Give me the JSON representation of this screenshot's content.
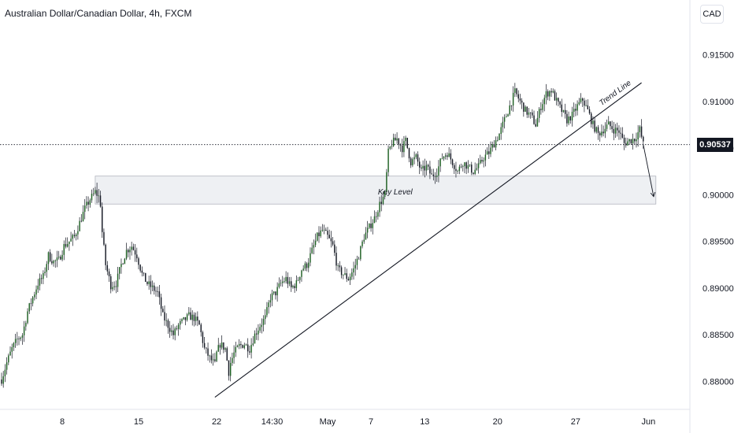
{
  "header": {
    "title": "Australian Dollar/Canadian Dollar, 4h, FXCM",
    "currency": "CAD"
  },
  "last_price": "0.90537",
  "chart_data": {
    "type": "candlestick",
    "symbol": "Australian Dollar/Canadian Dollar",
    "interval": "4h",
    "source": "FXCM",
    "currency": "CAD",
    "ylim": [
      0.877,
      0.918
    ],
    "y_ticks": [
      "0.88000",
      "0.88500",
      "0.89000",
      "0.89500",
      "0.90000",
      "0.90500",
      "0.91000",
      "0.91500"
    ],
    "x_ticks": [
      "8",
      "15",
      "22",
      "14:30",
      "May",
      "7",
      "13",
      "20",
      "27",
      "Jun"
    ],
    "current_price": 0.90537,
    "close_path": [
      [
        0,
        0.8802
      ],
      [
        3,
        0.882
      ],
      [
        6,
        0.8835
      ],
      [
        9,
        0.8845
      ],
      [
        12,
        0.885
      ],
      [
        15,
        0.8875
      ],
      [
        18,
        0.889
      ],
      [
        21,
        0.8905
      ],
      [
        24,
        0.8912
      ],
      [
        27,
        0.8935
      ],
      [
        30,
        0.8928
      ],
      [
        33,
        0.893
      ],
      [
        36,
        0.8945
      ],
      [
        39,
        0.895
      ],
      [
        42,
        0.8955
      ],
      [
        45,
        0.897
      ],
      [
        48,
        0.8985
      ],
      [
        51,
        0.8995
      ],
      [
        54,
        0.9003
      ],
      [
        56,
        0.8998
      ],
      [
        57,
        0.899
      ],
      [
        58,
        0.896
      ],
      [
        60,
        0.8925
      ],
      [
        63,
        0.8903
      ],
      [
        66,
        0.8905
      ],
      [
        69,
        0.8925
      ],
      [
        72,
        0.894
      ],
      [
        75,
        0.8945
      ],
      [
        78,
        0.8935
      ],
      [
        81,
        0.8915
      ],
      [
        84,
        0.8905
      ],
      [
        87,
        0.89
      ],
      [
        90,
        0.8895
      ],
      [
        93,
        0.887
      ],
      [
        96,
        0.886
      ],
      [
        99,
        0.885
      ],
      [
        102,
        0.886
      ],
      [
        105,
        0.8865
      ],
      [
        108,
        0.887
      ],
      [
        111,
        0.8868
      ],
      [
        114,
        0.886
      ],
      [
        117,
        0.8835
      ],
      [
        120,
        0.8825
      ],
      [
        123,
        0.8818
      ],
      [
        124,
        0.883
      ],
      [
        126,
        0.884
      ],
      [
        129,
        0.8835
      ],
      [
        131,
        0.881
      ],
      [
        132,
        0.882
      ],
      [
        134,
        0.883
      ],
      [
        137,
        0.8838
      ],
      [
        140,
        0.884
      ],
      [
        143,
        0.8835
      ],
      [
        146,
        0.885
      ],
      [
        149,
        0.886
      ],
      [
        152,
        0.8868
      ],
      [
        155,
        0.889
      ],
      [
        158,
        0.8895
      ],
      [
        161,
        0.8905
      ],
      [
        164,
        0.891
      ],
      [
        167,
        0.89
      ],
      [
        170,
        0.8905
      ],
      [
        173,
        0.892
      ],
      [
        176,
        0.8925
      ],
      [
        179,
        0.894
      ],
      [
        182,
        0.8955
      ],
      [
        185,
        0.8962
      ],
      [
        188,
        0.8955
      ],
      [
        191,
        0.8945
      ],
      [
        194,
        0.892
      ],
      [
        197,
        0.8915
      ],
      [
        200,
        0.891
      ],
      [
        203,
        0.892
      ],
      [
        206,
        0.8935
      ],
      [
        209,
        0.8955
      ],
      [
        212,
        0.8965
      ],
      [
        215,
        0.8975
      ],
      [
        218,
        0.899
      ],
      [
        221,
        0.9
      ],
      [
        223,
        0.9045
      ],
      [
        225,
        0.9055
      ],
      [
        228,
        0.906
      ],
      [
        231,
        0.905
      ],
      [
        233,
        0.9058
      ],
      [
        236,
        0.9035
      ],
      [
        239,
        0.904
      ],
      [
        242,
        0.9025
      ],
      [
        245,
        0.903
      ],
      [
        248,
        0.902
      ],
      [
        251,
        0.9025
      ],
      [
        254,
        0.904
      ],
      [
        257,
        0.9045
      ],
      [
        260,
        0.9035
      ],
      [
        263,
        0.9025
      ],
      [
        266,
        0.9035
      ],
      [
        269,
        0.903
      ],
      [
        272,
        0.9025
      ],
      [
        275,
        0.903
      ],
      [
        278,
        0.904
      ],
      [
        281,
        0.9045
      ],
      [
        284,
        0.9055
      ],
      [
        287,
        0.9065
      ],
      [
        290,
        0.908
      ],
      [
        293,
        0.9095
      ],
      [
        296,
        0.911
      ],
      [
        299,
        0.91
      ],
      [
        302,
        0.909
      ],
      [
        305,
        0.9085
      ],
      [
        308,
        0.9075
      ],
      [
        311,
        0.9095
      ],
      [
        314,
        0.9108
      ],
      [
        317,
        0.9112
      ],
      [
        320,
        0.91
      ],
      [
        323,
        0.909
      ],
      [
        326,
        0.908
      ],
      [
        329,
        0.9085
      ],
      [
        332,
        0.9095
      ],
      [
        335,
        0.9102
      ],
      [
        338,
        0.909
      ],
      [
        341,
        0.9075
      ],
      [
        344,
        0.9065
      ],
      [
        347,
        0.907
      ],
      [
        350,
        0.9075
      ],
      [
        353,
        0.907
      ],
      [
        356,
        0.9068
      ],
      [
        359,
        0.9055
      ],
      [
        362,
        0.9058
      ],
      [
        365,
        0.906
      ],
      [
        368,
        0.907
      ],
      [
        370,
        0.9054
      ]
    ],
    "overlays": {
      "key_level_zone": {
        "low": 0.899,
        "high": 0.902,
        "label": "Key Level"
      },
      "trend_line": {
        "label": "Trend Line",
        "points": [
          [
            123,
            0.8783
          ],
          [
            369,
            0.912
          ]
        ]
      },
      "projection_arrow": {
        "from": [
          370,
          0.9054
        ],
        "to": [
          376,
          0.8998
        ]
      }
    }
  }
}
